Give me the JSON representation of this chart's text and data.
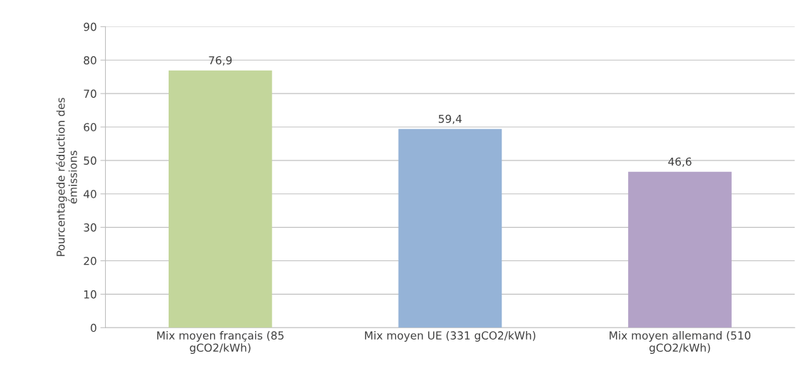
{
  "chart_data": {
    "type": "bar",
    "ylabel": "Pourcentagede réduction des\némissions",
    "categories": [
      "Mix moyen français (85\ngCO2/kWh)",
      "Mix moyen UE (331 gCO2/kWh)",
      "Mix moyen allemand (510\ngCO2/kWh)"
    ],
    "values": [
      76.9,
      59.4,
      46.6
    ],
    "colors": [
      "#c3d69b",
      "#95b3d7",
      "#b3a2c7"
    ],
    "value_labels": [
      "76,9",
      "59,4",
      "46,6"
    ],
    "ylim": [
      0,
      90
    ],
    "yticks": [
      0,
      10,
      20,
      30,
      40,
      50,
      60,
      70,
      80,
      90
    ],
    "grid": "y"
  }
}
